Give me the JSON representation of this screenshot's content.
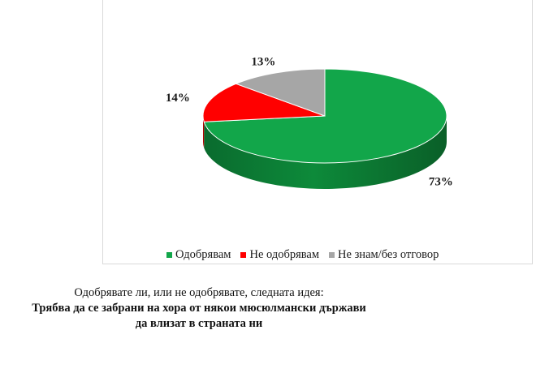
{
  "chart_data": {
    "type": "pie",
    "categories": [
      "Одобрявам",
      "Не одобрявам",
      "Не знам/без отговор"
    ],
    "values": [
      73,
      14,
      13
    ],
    "labels": [
      "73%",
      "14%",
      "13%"
    ],
    "colors": [
      "#12a64a",
      "#ff0000",
      "#a6a6a6"
    ],
    "legend_position": "bottom"
  },
  "legend": {
    "items": [
      {
        "label": "Одобрявам",
        "color": "#12a64a"
      },
      {
        "label": "Не одобрявам",
        "color": "#ff0000"
      },
      {
        "label": "Не знам/без отговор",
        "color": "#a6a6a6"
      }
    ]
  },
  "caption": {
    "line1": "Одобрявате ли, или не одобрявате, следната идея:",
    "line2": "Трябва да се забрани на хора от някои мюсюлмански държави",
    "line3": "да влизат в страната ни"
  }
}
